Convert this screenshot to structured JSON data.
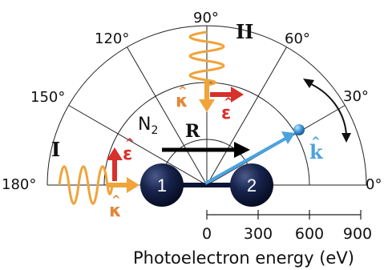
{
  "angles": {
    "a0": "0°",
    "a30": "30°",
    "a60": "60°",
    "a90": "90°",
    "a120": "120°",
    "a150": "150°",
    "a180": "180°"
  },
  "geometry_labels": {
    "config_one": "I",
    "config_two": "II",
    "molecule": "N",
    "molecule_subscript": "2",
    "bond_vector": "R",
    "electron_wavevector": "k",
    "polarization_one": "ε",
    "polarization_two": "ε",
    "propagation_one": "κ",
    "propagation_two": "κ",
    "atom_one": "1",
    "atom_two": "2"
  },
  "energy_scale": {
    "ticks": [
      "0",
      "300",
      "600",
      "900"
    ],
    "label": "Photoelectron energy (eV)"
  },
  "colors": {
    "photon": "#f0a43a",
    "polarization": "#d8302a",
    "propagation": "#e0893a",
    "electron": "#4aa3dd",
    "atom": "#0b1535",
    "grid": "#222222"
  }
}
